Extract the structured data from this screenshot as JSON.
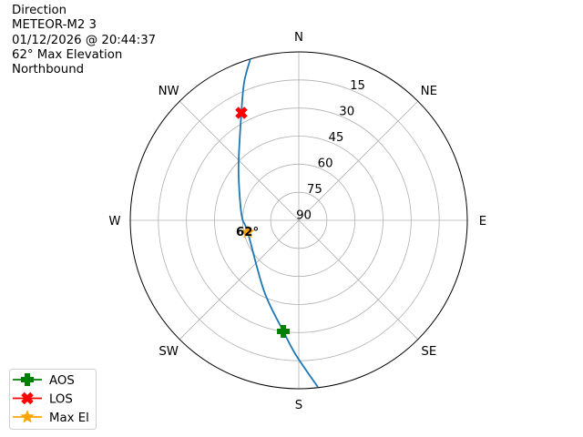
{
  "info": {
    "heading": "Direction",
    "satellite": "METEOR-M2 3",
    "datetime": "01/12/2026 @ 20:44:37",
    "max_elevation": "62° Max Elevation",
    "direction": "Northbound"
  },
  "chart_data": {
    "type": "polar-line",
    "title": "",
    "angular_axis": {
      "zero": "north",
      "direction": "clockwise",
      "labels": [
        {
          "az": 0,
          "text": "N"
        },
        {
          "az": 45,
          "text": "NE"
        },
        {
          "az": 90,
          "text": "E"
        },
        {
          "az": 135,
          "text": "SE"
        },
        {
          "az": 180,
          "text": "S"
        },
        {
          "az": 225,
          "text": "SW"
        },
        {
          "az": 270,
          "text": "W"
        },
        {
          "az": 315,
          "text": "NW"
        }
      ]
    },
    "radial_axis": {
      "quantity": "elevation",
      "range": [
        90,
        0
      ],
      "ticks": [
        15,
        30,
        45,
        60,
        75,
        90
      ],
      "label_azimuth": 22.5
    },
    "grid": true,
    "track": {
      "color": "#1f77b4",
      "points": [
        {
          "az": 173.5,
          "el": 0.4
        },
        {
          "az": 181.2,
          "el": 18
        },
        {
          "az": 187.9,
          "el": 30.1
        },
        {
          "az": 206,
          "el": 47.8
        },
        {
          "az": 256.9,
          "el": 62
        },
        {
          "az": 271.8,
          "el": 59.8
        },
        {
          "az": 292.6,
          "el": 55.8
        },
        {
          "az": 313.2,
          "el": 45.9
        },
        {
          "az": 331.9,
          "el": 24.9
        },
        {
          "az": 338.5,
          "el": 10.5
        },
        {
          "az": 343.3,
          "el": 0
        }
      ]
    },
    "markers": [
      {
        "name": "AOS",
        "az": 187.9,
        "el": 30.1,
        "color": "#008000",
        "shape": "plus"
      },
      {
        "name": "LOS",
        "az": 331.9,
        "el": 24.9,
        "color": "#ff0000",
        "shape": "x"
      },
      {
        "name": "Max El",
        "az": 256.9,
        "el": 62,
        "color": "#ffa500",
        "shape": "star"
      }
    ],
    "annotations": [
      {
        "text": "62°",
        "az": 256.9,
        "el": 62
      }
    ],
    "legend": {
      "placement": "bottom-left",
      "entries": [
        "AOS",
        "LOS",
        "Max El"
      ]
    }
  }
}
